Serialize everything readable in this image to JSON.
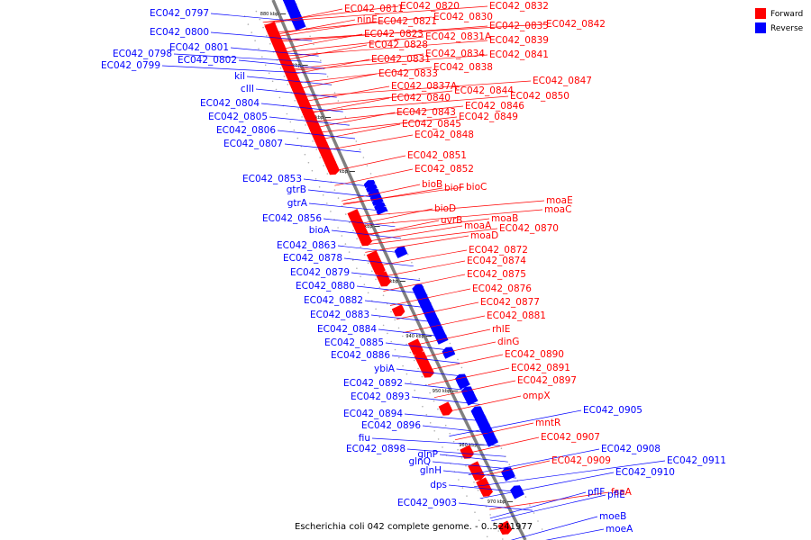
{
  "caption": "Escherichia coli 042 complete genome. - 0..5241977",
  "legend": [
    {
      "label": "Forward",
      "color": "#ff0000"
    },
    {
      "label": "Reverse",
      "color": "#0000ff"
    }
  ],
  "colors": {
    "forward": "#ff0000",
    "reverse": "#0000ff",
    "backbone": "#808080"
  },
  "ticks": [
    "880 kbp",
    "890 kbp",
    "900 kbp",
    "910 kbp",
    "920 kbp",
    "930 kbp",
    "940 kbp",
    "950 kbp",
    "960 kbp",
    "970 kbp"
  ],
  "forward_labels": [
    "EC042_0811",
    "EC042_0820",
    "EC042_0832",
    "ninE",
    "EC042_0821",
    "EC042_0830",
    "EC042_0835",
    "EC042_0842",
    "EC042_0823",
    "EC042_0831A",
    "EC042_0839",
    "EC042_0828",
    "EC042_0834",
    "EC042_0841",
    "EC042_0831",
    "EC042_0838",
    "EC042_0833",
    "EC042_0847",
    "EC042_0837A",
    "EC042_0844",
    "EC042_0850",
    "EC042_0840",
    "EC042_0846",
    "EC042_0843",
    "EC042_0849",
    "EC042_0845",
    "EC042_0848",
    "EC042_0851",
    "EC042_0852",
    "bioB",
    "bioF",
    "bioC",
    "moaE",
    "bioD",
    "moaC",
    "uvrB",
    "moaB",
    "moaA",
    "EC042_0870",
    "moaD",
    "EC042_0872",
    "EC042_0874",
    "EC042_0875",
    "EC042_0876",
    "EC042_0877",
    "EC042_0881",
    "rhlE",
    "dinG",
    "EC042_0890",
    "EC042_0891",
    "EC042_0897",
    "ompX",
    "mntR",
    "EC042_0907",
    "EC042_0909",
    "fsaA"
  ],
  "reverse_labels": [
    "EC042_0797",
    "EC042_0800",
    "EC042_0798",
    "EC042_0801",
    "EC042_0799",
    "EC042_0802",
    "kil",
    "cIII",
    "EC042_0804",
    "EC042_0805",
    "EC042_0806",
    "EC042_0807",
    "EC042_0853",
    "gtrB",
    "gtrA",
    "EC042_0856",
    "bioA",
    "EC042_0863",
    "EC042_0878",
    "EC042_0879",
    "EC042_0880",
    "EC042_0882",
    "EC042_0883",
    "EC042_0884",
    "EC042_0885",
    "EC042_0886",
    "ybiA",
    "EC042_0892",
    "EC042_0893",
    "EC042_0894",
    "EC042_0896",
    "fiu",
    "EC042_0898",
    "glnP",
    "glnQ",
    "glnH",
    "dps",
    "EC042_0903",
    "EC042_0905",
    "EC042_0908",
    "EC042_0911",
    "EC042_0910",
    "pflF",
    "pflE",
    "moeB",
    "moeA"
  ]
}
